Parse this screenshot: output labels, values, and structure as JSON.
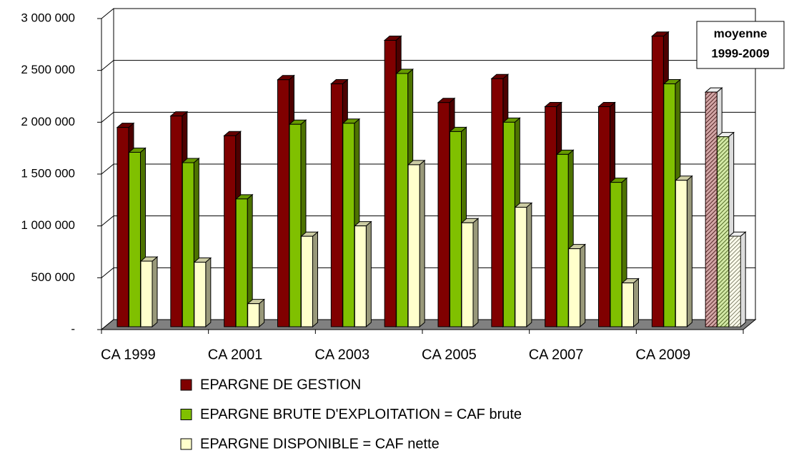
{
  "chart_data": {
    "type": "bar3d",
    "categories": [
      "CA 1999",
      null,
      "CA 2001",
      null,
      "CA 2003",
      null,
      "CA 2005",
      null,
      "CA 2007",
      null,
      "CA 2009",
      null
    ],
    "series": [
      {
        "name": "EPARGNE DE GESTION",
        "color": "#800000",
        "values": [
          1950000,
          2060000,
          1870000,
          2410000,
          2370000,
          2790000,
          2190000,
          2420000,
          2150000,
          2150000,
          2830000,
          2290000
        ]
      },
      {
        "name": "EPARGNE BRUTE D'EXPLOITATION = CAF brute",
        "color": "#80c000",
        "values": [
          1710000,
          1610000,
          1260000,
          1980000,
          1990000,
          2470000,
          1910000,
          2000000,
          1690000,
          1420000,
          2370000,
          1860000
        ]
      },
      {
        "name": "EPARGNE DISPONIBLE = CAF nette",
        "color": "#ffffcc",
        "values": [
          660000,
          650000,
          250000,
          900000,
          1000000,
          1590000,
          1030000,
          1180000,
          780000,
          450000,
          1440000,
          900000
        ]
      }
    ],
    "annotation": [
      "moyenne",
      "1999-2009"
    ],
    "ylim": [
      0,
      3000000
    ],
    "yticks": [
      {
        "value": 0,
        "label": "-"
      },
      {
        "value": 500000,
        "label": "500 000"
      },
      {
        "value": 1000000,
        "label": "1 000 000"
      },
      {
        "value": 1500000,
        "label": "1 500 000"
      },
      {
        "value": 2000000,
        "label": "2 000 000"
      },
      {
        "value": 2500000,
        "label": "2 500 000"
      },
      {
        "value": 3000000,
        "label": "3 000 000"
      }
    ],
    "grid": true
  }
}
